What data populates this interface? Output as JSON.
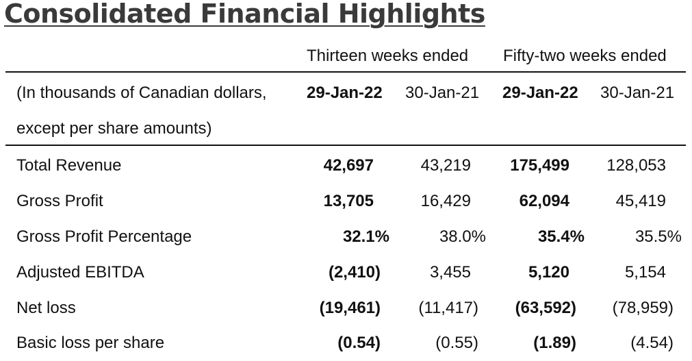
{
  "title": "Consolidated Financial Highlights",
  "period_groups": [
    "Thirteen weeks ended",
    "Fifty-two weeks ended"
  ],
  "units_label": {
    "line1": "(In thousands of Canadian dollars,",
    "line2": "except per share amounts)"
  },
  "columns": [
    "29-Jan-22",
    "30-Jan-21",
    "29-Jan-22",
    "30-Jan-21"
  ],
  "rows": [
    {
      "label": "Total Revenue",
      "values": [
        "42,697",
        "43,219",
        "175,499",
        "128,053"
      ]
    },
    {
      "label": "Gross Profit",
      "values": [
        "13,705",
        "16,429",
        "62,094",
        "45,419"
      ]
    },
    {
      "label": "Gross Profit Percentage",
      "values": [
        "32.1%",
        "38.0%",
        "35.4%",
        "35.5%"
      ]
    },
    {
      "label": "Adjusted EBITDA",
      "values": [
        "(2,410)",
        "3,455",
        "5,120",
        "5,154"
      ]
    },
    {
      "label": "Net loss",
      "values": [
        "(19,461)",
        "(11,417)",
        "(63,592)",
        "(78,959)"
      ]
    },
    {
      "label": "Basic loss per share",
      "values": [
        "(0.54)",
        "(0.55)",
        "(1.89)",
        "(4.54)"
      ]
    }
  ]
}
